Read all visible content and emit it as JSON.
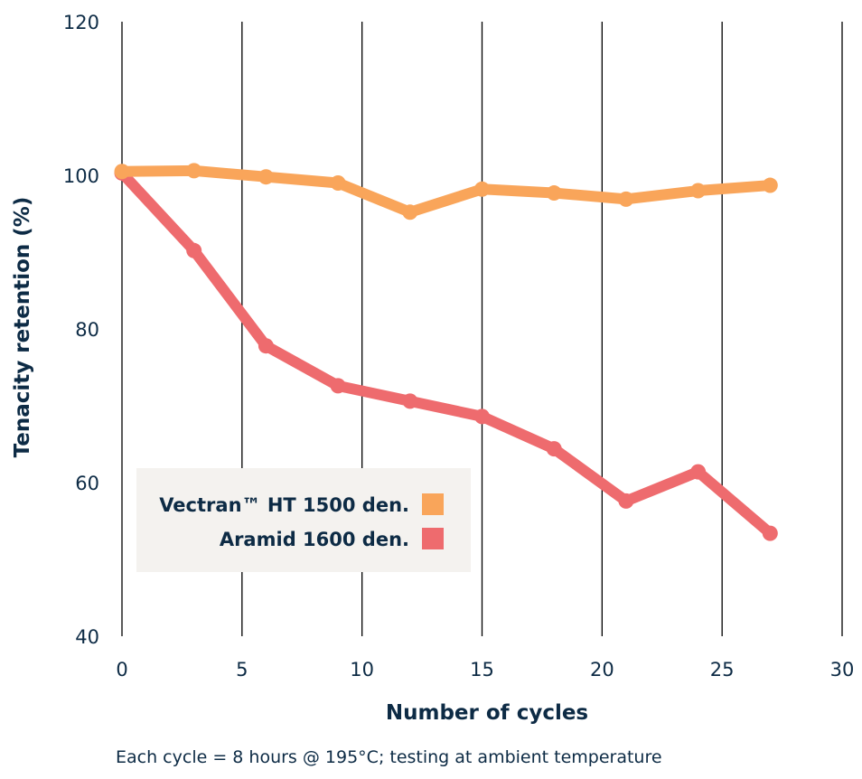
{
  "chart_data": {
    "type": "line",
    "title": "",
    "xlabel": "Number of cycles",
    "ylabel": "Tenacity retention (%)",
    "note": "Each cycle = 8 hours @ 195°C; testing at ambient temperature",
    "xlim": [
      0,
      30
    ],
    "ylim": [
      40,
      120
    ],
    "xticks": [
      0,
      5,
      10,
      15,
      20,
      25,
      30
    ],
    "yticks": [
      40,
      60,
      80,
      100,
      120
    ],
    "grid": "vertical",
    "legend_position": "lower-left",
    "series": [
      {
        "name": "Vectran™ HT 1500 den.",
        "color": "#F9A55A",
        "x": [
          0,
          3,
          6,
          9,
          12,
          15,
          18,
          21,
          24,
          27
        ],
        "y": [
          100.5,
          100.6,
          99.8,
          99.0,
          95.2,
          98.2,
          97.7,
          96.9,
          98.0,
          98.7
        ]
      },
      {
        "name": "Aramid 1600 den.",
        "color": "#EE6B6E",
        "x": [
          0,
          3,
          6,
          9,
          12,
          15,
          18,
          21,
          24,
          27
        ],
        "y": [
          100.3,
          90.2,
          77.8,
          72.6,
          70.6,
          68.6,
          64.4,
          57.6,
          61.4,
          53.4
        ]
      }
    ]
  },
  "colors": {
    "axis_text": "#0D2B45",
    "grid": "#000000",
    "legend_bg": "#F4F2EF"
  }
}
